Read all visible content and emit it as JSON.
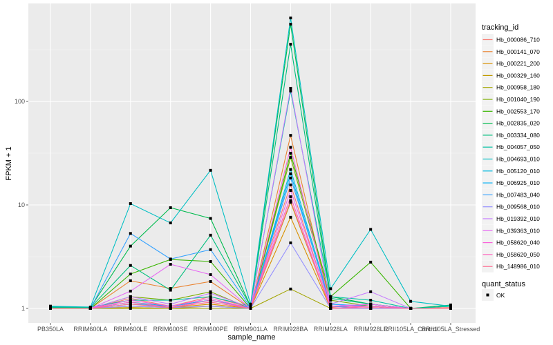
{
  "chart_data": {
    "type": "line",
    "title": "",
    "xlabel": "sample_name",
    "ylabel": "FPKM + 1",
    "yscale": "log10",
    "ylim": [
      0.724,
      885
    ],
    "yticks": [
      1,
      10,
      100
    ],
    "ytick_labels": [
      "1",
      "10",
      "100"
    ],
    "grid": true,
    "legend_placement": "right",
    "categories": [
      "PB350LA",
      "RRIM600LA",
      "RRIM600LE",
      "RRIM600SE",
      "RRIM600PE",
      "RRIM901LA",
      "RRIM928BA",
      "RRIM928LA",
      "RRIM928LE",
      "RRII105LA_Control",
      "RRII105LA_Stressed"
    ],
    "legend_title": "tracking_id",
    "series": [
      {
        "name": "Hb_000086_710",
        "color": "#F8766D",
        "values": [
          1.02,
          1.0,
          1.25,
          1.05,
          1.3,
          1.02,
          15.6,
          1.02,
          1.1,
          1.0,
          1.02
        ]
      },
      {
        "name": "Hb_000141_070",
        "color": "#EA8331",
        "values": [
          1.0,
          1.0,
          1.85,
          1.56,
          1.82,
          1.0,
          47,
          1.05,
          1.05,
          1.0,
          1.0
        ]
      },
      {
        "name": "Hb_000221_200",
        "color": "#D89000",
        "values": [
          1.0,
          1.0,
          1.05,
          1.02,
          1.1,
          1.0,
          7.6,
          1.0,
          1.0,
          1.0,
          1.0
        ]
      },
      {
        "name": "Hb_000329_160",
        "color": "#C09B00",
        "values": [
          1.0,
          1.0,
          1.02,
          1.0,
          1.05,
          1.0,
          10.6,
          1.0,
          1.0,
          1.0,
          1.0
        ]
      },
      {
        "name": "Hb_000958_180",
        "color": "#A3A500",
        "values": [
          1.0,
          1.0,
          1.0,
          1.0,
          1.0,
          1.0,
          1.54,
          1.0,
          1.0,
          1.0,
          1.0
        ]
      },
      {
        "name": "Hb_001040_190",
        "color": "#7CAE00",
        "values": [
          1.02,
          1.0,
          1.3,
          1.2,
          1.45,
          1.0,
          28.8,
          1.2,
          1.05,
          1.0,
          1.0
        ]
      },
      {
        "name": "Hb_002553_170",
        "color": "#39B600",
        "values": [
          1.05,
          1.0,
          2.15,
          2.97,
          2.84,
          1.0,
          31.6,
          1.3,
          2.8,
          1.0,
          1.0
        ]
      },
      {
        "name": "Hb_002835_020",
        "color": "#00BB4E",
        "values": [
          1.03,
          1.02,
          4.0,
          9.4,
          7.4,
          1.05,
          558,
          1.3,
          1.1,
          1.0,
          1.08
        ]
      },
      {
        "name": "Hb_003334_080",
        "color": "#00BF7D",
        "values": [
          1.02,
          1.02,
          2.6,
          1.5,
          5.1,
          1.05,
          357,
          1.25,
          1.1,
          1.0,
          1.05
        ]
      },
      {
        "name": "Hb_004057_050",
        "color": "#00C1A3",
        "values": [
          1.03,
          1.03,
          1.2,
          1.2,
          1.3,
          1.05,
          126,
          1.3,
          1.2,
          1.0,
          1.05
        ]
      },
      {
        "name": "Hb_004693_010",
        "color": "#00BFC4",
        "values": [
          1.05,
          1.03,
          10.3,
          6.7,
          21.6,
          1.1,
          641,
          1.55,
          5.8,
          1.17,
          1.05
        ]
      },
      {
        "name": "Hb_005120_010",
        "color": "#00BAE0",
        "values": [
          1.0,
          1.0,
          1.15,
          1.05,
          1.2,
          1.0,
          22,
          1.1,
          1.05,
          1.0,
          1.0
        ]
      },
      {
        "name": "Hb_006925_010",
        "color": "#00B0F6",
        "values": [
          1.0,
          1.0,
          1.1,
          1.05,
          1.2,
          1.02,
          20,
          1.05,
          1.0,
          1.0,
          1.0
        ]
      },
      {
        "name": "Hb_007483_040",
        "color": "#35A2FF",
        "values": [
          1.0,
          1.0,
          5.3,
          3.0,
          3.7,
          1.02,
          18.2,
          1.1,
          1.05,
          1.0,
          1.0
        ]
      },
      {
        "name": "Hb_009568_010",
        "color": "#9590FF",
        "values": [
          1.0,
          1.0,
          1.05,
          1.02,
          1.05,
          1.0,
          4.3,
          1.0,
          1.0,
          1.0,
          1.0
        ]
      },
      {
        "name": "Hb_019392_010",
        "color": "#C77CFF",
        "values": [
          1.0,
          1.0,
          1.3,
          1.1,
          1.4,
          1.02,
          134,
          1.1,
          1.45,
          1.0,
          1.0
        ]
      },
      {
        "name": "Hb_039363_010",
        "color": "#E76BF3",
        "values": [
          1.0,
          1.0,
          1.47,
          2.67,
          2.12,
          1.0,
          13.8,
          1.05,
          1.1,
          1.0,
          1.0
        ]
      },
      {
        "name": "Hb_058620_040",
        "color": "#FA62DB",
        "values": [
          1.0,
          1.0,
          1.2,
          1.05,
          1.25,
          1.0,
          36,
          1.05,
          1.05,
          1.0,
          1.0
        ]
      },
      {
        "name": "Hb_058620_050",
        "color": "#FF62BC",
        "values": [
          1.0,
          1.0,
          1.15,
          1.02,
          1.2,
          1.0,
          12,
          1.0,
          1.05,
          1.0,
          1.0
        ]
      },
      {
        "name": "Hb_148986_010",
        "color": "#FF6C91",
        "values": [
          1.0,
          1.0,
          1.1,
          1.02,
          1.15,
          1.0,
          11,
          1.0,
          1.02,
          1.0,
          1.0
        ]
      }
    ],
    "shape_legend": {
      "title": "quant_status",
      "items": [
        "OK"
      ]
    }
  }
}
